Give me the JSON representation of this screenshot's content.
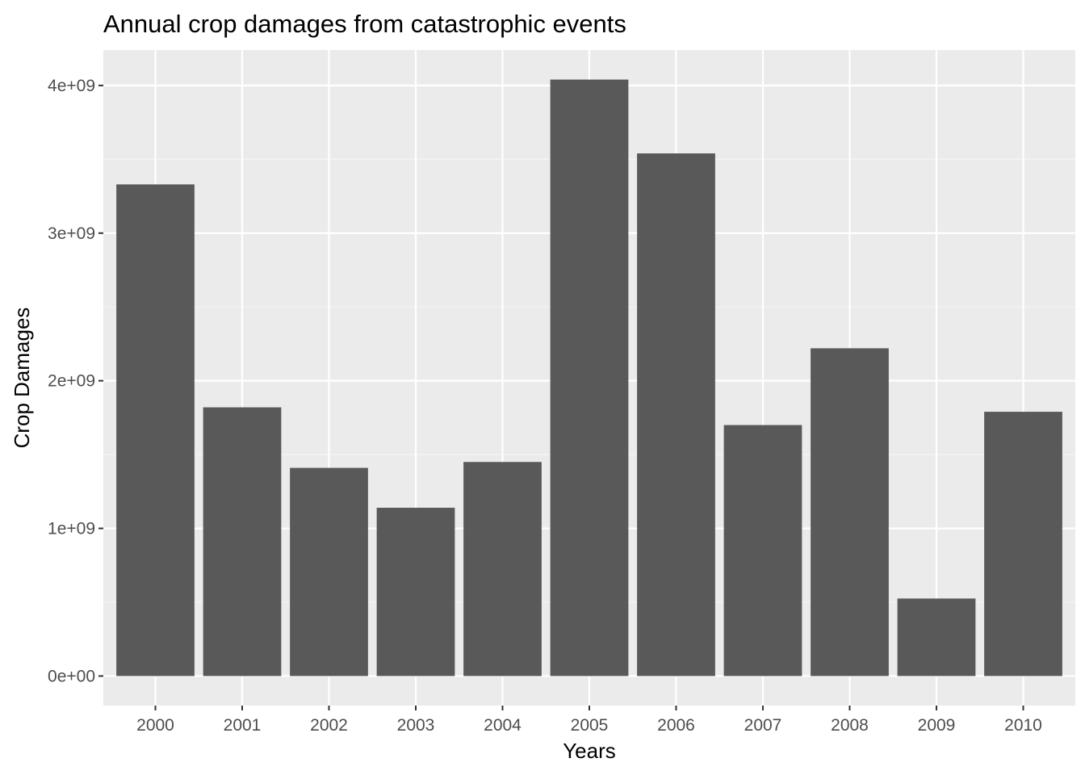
{
  "chart_data": {
    "type": "bar",
    "title": "Annual crop damages from catastrophic events",
    "xlabel": "Years",
    "ylabel": "Crop Damages",
    "categories": [
      "2000",
      "2001",
      "2002",
      "2003",
      "2004",
      "2005",
      "2006",
      "2007",
      "2008",
      "2009",
      "2010"
    ],
    "values": [
      3330000000,
      1820000000,
      1410000000,
      1140000000,
      1450000000,
      4040000000,
      3540000000,
      1700000000,
      2220000000,
      525000000,
      1790000000
    ],
    "ylim": [
      -200000000,
      4240000000
    ],
    "yticks": [
      0,
      1000000000,
      2000000000,
      3000000000,
      4000000000
    ],
    "ytick_labels": [
      "0e+00",
      "1e+09",
      "2e+09",
      "3e+09",
      "4e+09"
    ],
    "grid": true,
    "legend": "none",
    "colors": {
      "panel_background": "#ebebeb",
      "grid_major": "#ffffff",
      "grid_minor": "#f5f5f5",
      "bar_fill": "#595959",
      "tick_text": "#4d4d4d",
      "tick_line": "#333333",
      "title_text": "#000000"
    }
  }
}
